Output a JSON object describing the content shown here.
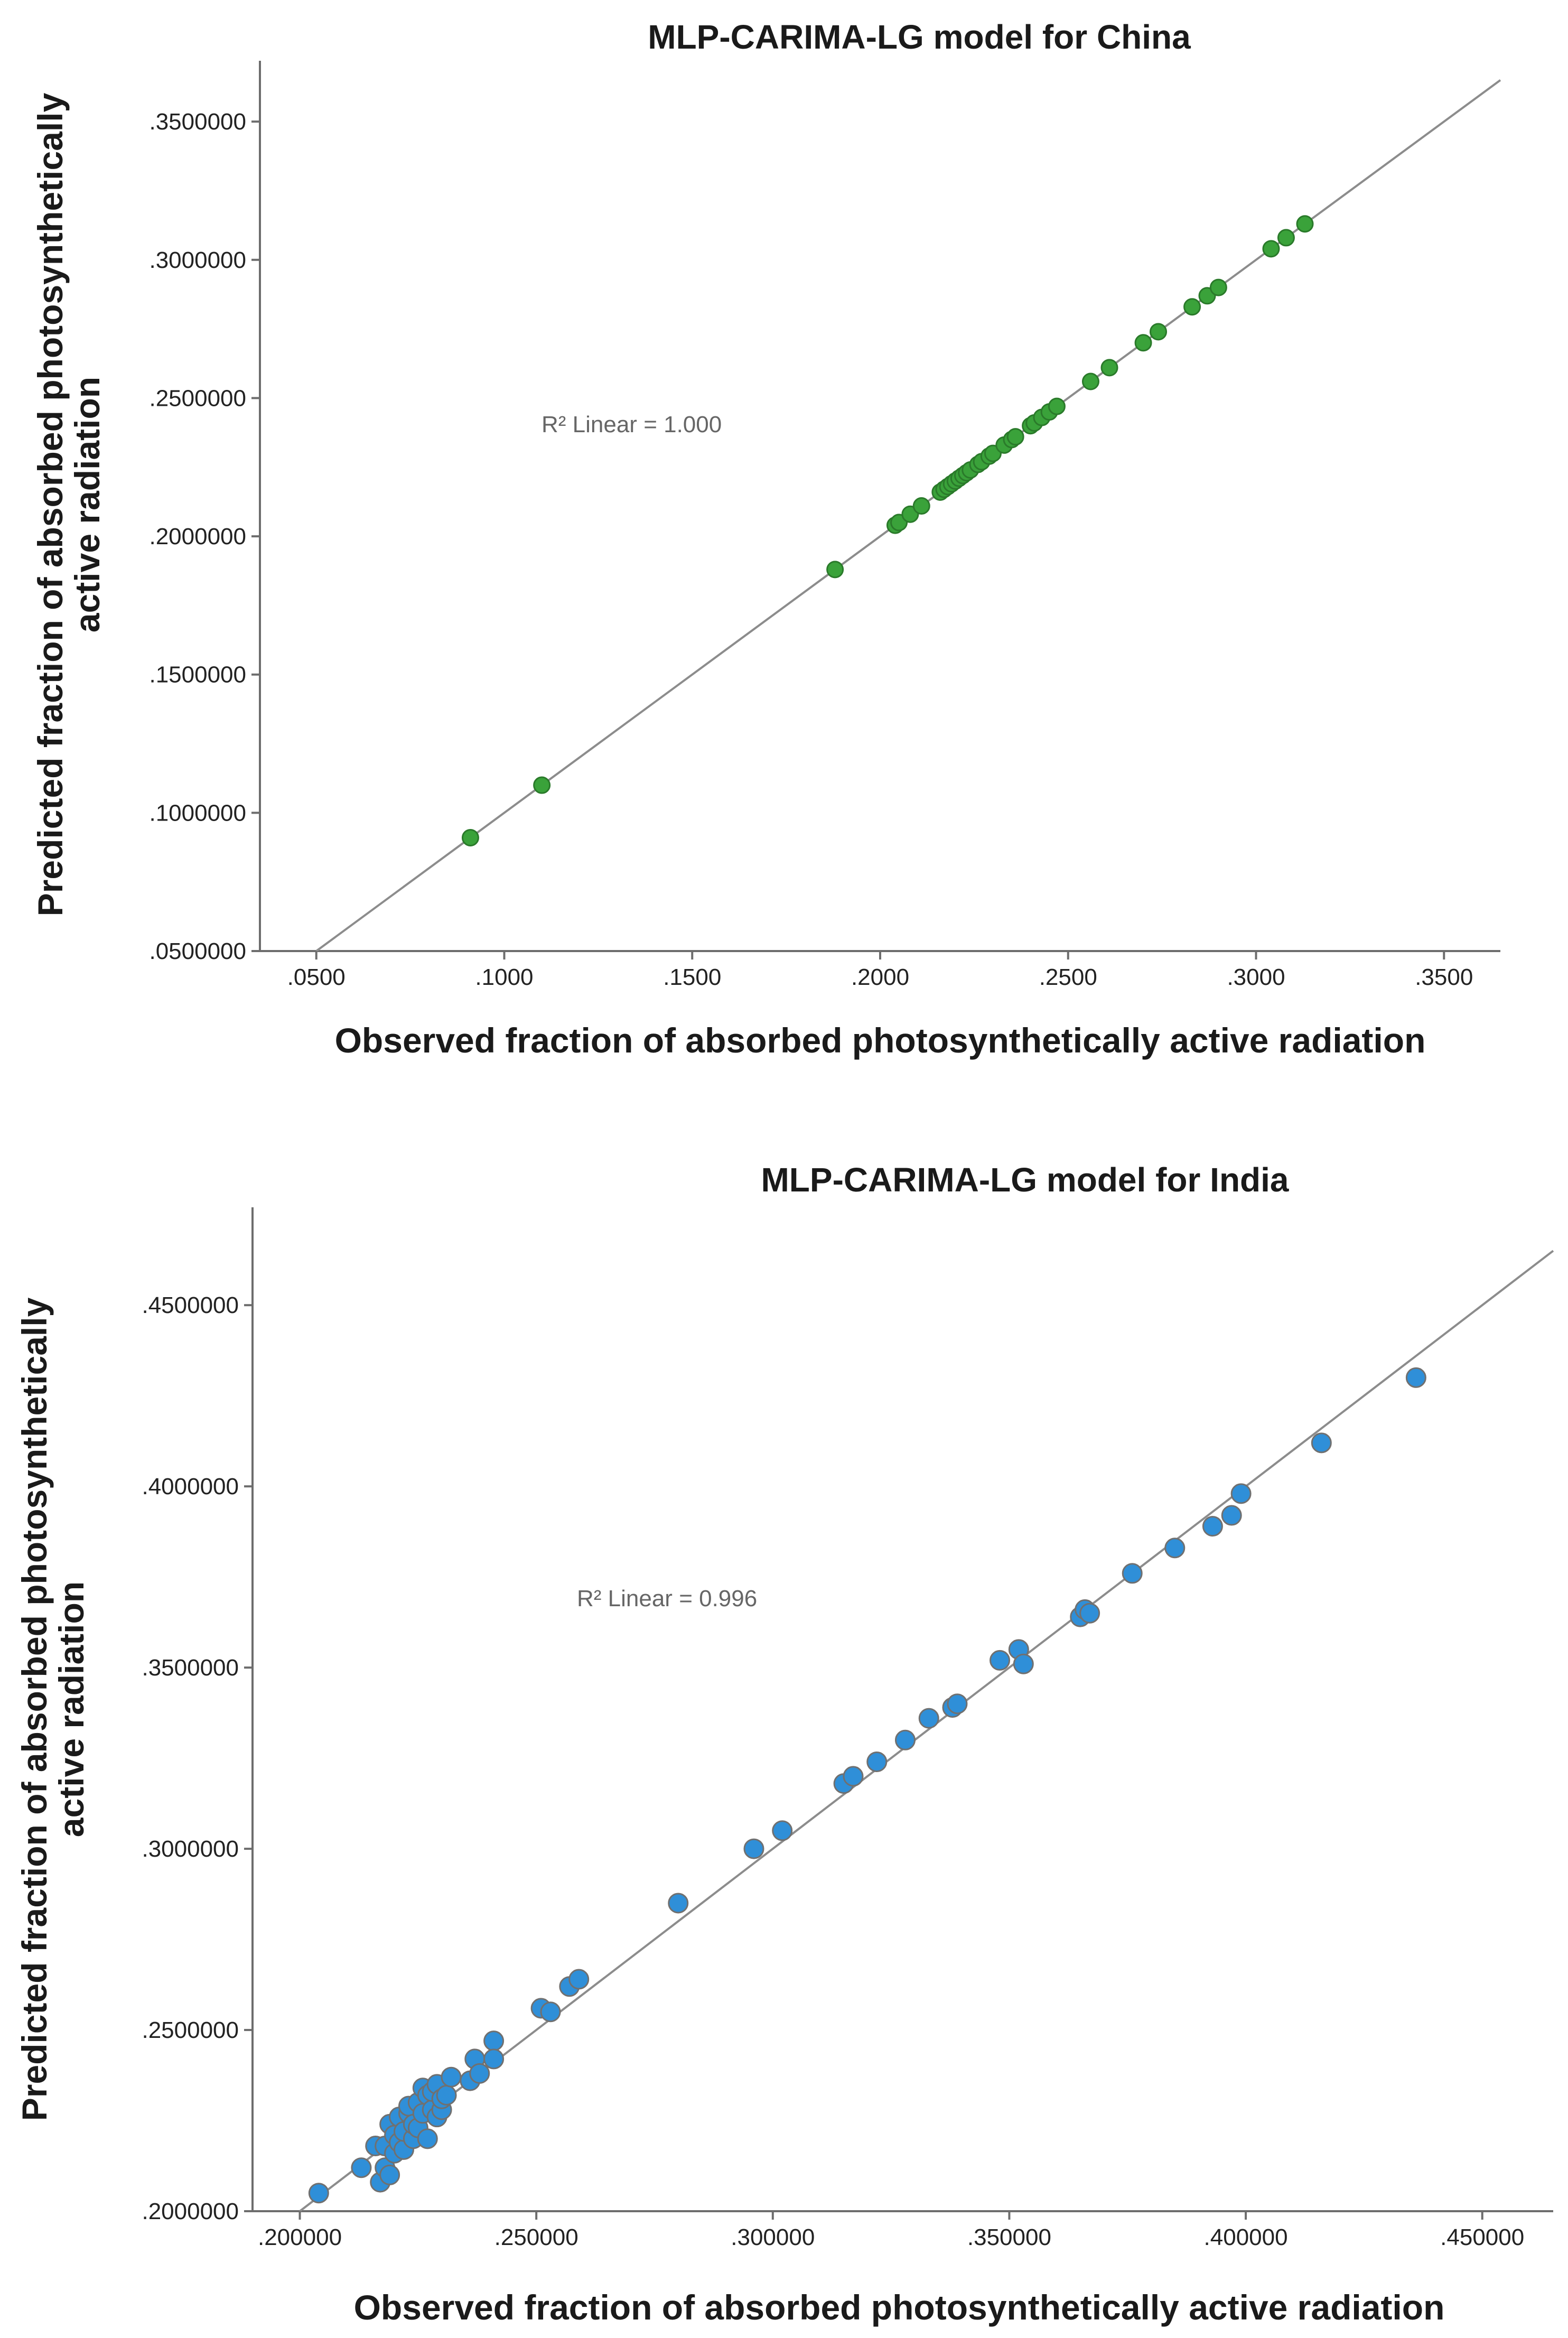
{
  "chart_data": [
    {
      "type": "scatter",
      "title": "MLP-CARIMA-LG model for China",
      "xlabel": "Observed fraction of absorbed photosynthetically active radiation",
      "ylabel_line1": "Predicted fraction of absorbed photosynthetically",
      "ylabel_line2": "active radiation",
      "r2_label": "R² Linear = 1.000",
      "xlim": [
        0.035,
        0.365
      ],
      "ylim": [
        0.05,
        0.372
      ],
      "xticks": [
        0.05,
        0.1,
        0.15,
        0.2,
        0.25,
        0.3,
        0.35
      ],
      "xtick_labels": [
        ".0500",
        ".1000",
        ".1500",
        ".2000",
        ".2500",
        ".3000",
        ".3500"
      ],
      "yticks": [
        0.05,
        0.1,
        0.15,
        0.2,
        0.25,
        0.3,
        0.35
      ],
      "ytick_labels": [
        ".0500000",
        ".1000000",
        ".1500000",
        ".2000000",
        ".2500000",
        ".3000000",
        ".3500000"
      ],
      "fit_line": {
        "slope": 1.0,
        "intercept": 0.0
      },
      "point_color": "#3aa23a",
      "point_stroke": "#2a7a2a",
      "x": [
        0.091,
        0.11,
        0.188,
        0.204,
        0.205,
        0.208,
        0.211,
        0.216,
        0.217,
        0.218,
        0.219,
        0.22,
        0.221,
        0.222,
        0.223,
        0.224,
        0.226,
        0.227,
        0.229,
        0.23,
        0.233,
        0.235,
        0.236,
        0.24,
        0.241,
        0.243,
        0.245,
        0.247,
        0.256,
        0.261,
        0.27,
        0.274,
        0.283,
        0.287,
        0.29,
        0.304,
        0.308,
        0.313
      ],
      "y": [
        0.091,
        0.11,
        0.188,
        0.204,
        0.205,
        0.208,
        0.211,
        0.216,
        0.217,
        0.218,
        0.219,
        0.22,
        0.221,
        0.222,
        0.223,
        0.224,
        0.226,
        0.227,
        0.229,
        0.23,
        0.233,
        0.235,
        0.236,
        0.24,
        0.241,
        0.243,
        0.245,
        0.247,
        0.256,
        0.261,
        0.27,
        0.274,
        0.283,
        0.287,
        0.29,
        0.304,
        0.308,
        0.313
      ]
    },
    {
      "type": "scatter",
      "title": "MLP-CARIMA-LG model for India",
      "xlabel": "Observed fraction of absorbed photosynthetically active radiation",
      "ylabel_line1": "Predicted fraction of absorbed photosynthetically",
      "ylabel_line2": "active radiation",
      "r2_label": "R² Linear = 0.996",
      "xlim": [
        0.19,
        0.465
      ],
      "ylim": [
        0.2,
        0.477
      ],
      "xticks": [
        0.2,
        0.25,
        0.3,
        0.35,
        0.4,
        0.45
      ],
      "xtick_labels": [
        ".200000",
        ".250000",
        ".300000",
        ".350000",
        ".400000",
        ".450000"
      ],
      "yticks": [
        0.2,
        0.25,
        0.3,
        0.35,
        0.4,
        0.45
      ],
      "ytick_labels": [
        ".2000000",
        ".2500000",
        ".3000000",
        ".3500000",
        ".4000000",
        ".4500000"
      ],
      "fit_line": {
        "slope": 1.0,
        "intercept": 0.0
      },
      "point_color": "#2f8fd8",
      "point_stroke": "#707070",
      "x": [
        0.204,
        0.213,
        0.216,
        0.217,
        0.218,
        0.218,
        0.219,
        0.219,
        0.22,
        0.22,
        0.221,
        0.221,
        0.222,
        0.222,
        0.223,
        0.223,
        0.224,
        0.224,
        0.225,
        0.225,
        0.226,
        0.226,
        0.227,
        0.227,
        0.228,
        0.228,
        0.229,
        0.229,
        0.23,
        0.23,
        0.231,
        0.232,
        0.236,
        0.237,
        0.238,
        0.241,
        0.241,
        0.251,
        0.253,
        0.257,
        0.259,
        0.28,
        0.296,
        0.302,
        0.315,
        0.317,
        0.322,
        0.328,
        0.333,
        0.338,
        0.339,
        0.348,
        0.352,
        0.353,
        0.365,
        0.366,
        0.367,
        0.376,
        0.385,
        0.393,
        0.397,
        0.399,
        0.416,
        0.436
      ],
      "y": [
        0.205,
        0.212,
        0.218,
        0.208,
        0.212,
        0.218,
        0.21,
        0.224,
        0.216,
        0.221,
        0.219,
        0.226,
        0.217,
        0.222,
        0.227,
        0.229,
        0.22,
        0.224,
        0.223,
        0.23,
        0.227,
        0.234,
        0.22,
        0.232,
        0.228,
        0.233,
        0.226,
        0.235,
        0.228,
        0.231,
        0.232,
        0.237,
        0.236,
        0.242,
        0.238,
        0.247,
        0.242,
        0.256,
        0.255,
        0.262,
        0.264,
        0.285,
        0.3,
        0.305,
        0.318,
        0.32,
        0.324,
        0.33,
        0.336,
        0.339,
        0.34,
        0.352,
        0.355,
        0.351,
        0.364,
        0.366,
        0.365,
        0.376,
        0.383,
        0.389,
        0.392,
        0.398,
        0.412,
        0.43
      ]
    }
  ]
}
